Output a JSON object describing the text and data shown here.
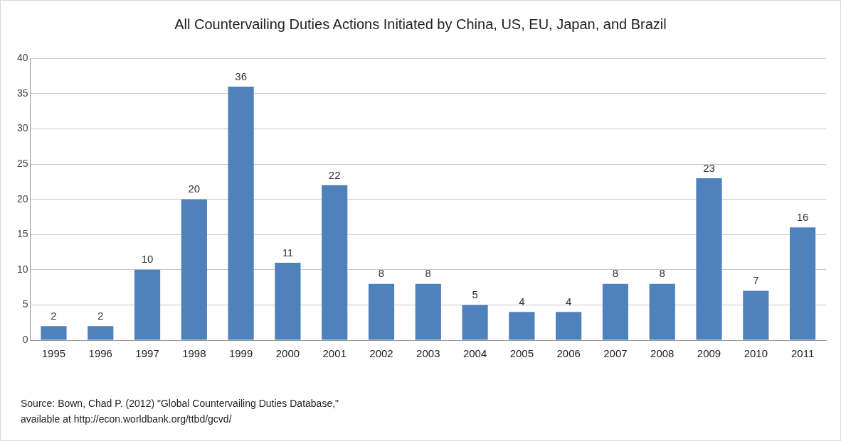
{
  "chart_data": {
    "type": "bar",
    "title": "All Countervailing Duties Actions Initiated by China, US, EU, Japan, and Brazil",
    "categories": [
      "1995",
      "1996",
      "1997",
      "1998",
      "1999",
      "2000",
      "2001",
      "2002",
      "2003",
      "2004",
      "2005",
      "2006",
      "2007",
      "2008",
      "2009",
      "2010",
      "2011"
    ],
    "values": [
      2,
      2,
      10,
      20,
      36,
      11,
      22,
      8,
      8,
      5,
      4,
      4,
      8,
      8,
      23,
      7,
      16
    ],
    "color": "#4f81bd",
    "ylim": [
      0,
      40
    ],
    "yticks": [
      0,
      5,
      10,
      15,
      20,
      25,
      30,
      35,
      40
    ],
    "grid": "y",
    "legend": false,
    "data_labels": true,
    "annotations": [
      "Source:  Bown, Chad P. (2012) \"Global Countervailing Duties Database,\"",
      "available at http://econ.worldbank.org/ttbd/gcvd/"
    ]
  }
}
